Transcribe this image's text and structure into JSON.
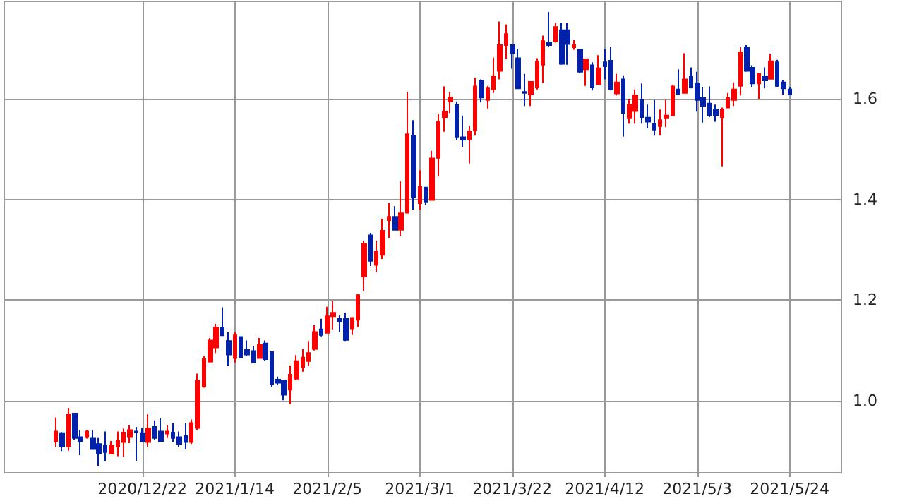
{
  "chart_data": {
    "type": "candlestick",
    "categories": [
      null,
      null,
      null,
      null,
      null,
      null,
      null,
      null,
      null,
      null,
      null,
      null,
      null,
      null,
      "2020/12/22",
      null,
      null,
      null,
      null,
      null,
      null,
      null,
      null,
      null,
      null,
      null,
      null,
      null,
      null,
      "2021/1/14",
      null,
      null,
      null,
      null,
      null,
      null,
      null,
      null,
      null,
      null,
      null,
      null,
      null,
      null,
      "2021/2/5",
      null,
      null,
      null,
      null,
      null,
      null,
      null,
      null,
      null,
      null,
      null,
      null,
      null,
      null,
      "2021/3/1",
      null,
      null,
      null,
      null,
      null,
      null,
      null,
      null,
      null,
      null,
      null,
      null,
      null,
      null,
      "2021/3/22",
      null,
      null,
      null,
      null,
      null,
      null,
      null,
      null,
      null,
      null,
      null,
      null,
      null,
      null,
      "2021/4/12",
      null,
      null,
      null,
      null,
      null,
      null,
      null,
      null,
      null,
      null,
      null,
      null,
      null,
      null,
      "2021/5/3",
      null,
      null,
      null,
      null,
      null,
      null,
      null,
      null,
      null,
      null,
      null,
      null,
      null,
      null,
      "2021/5/24"
    ],
    "ohlc": [
      [
        0.92,
        0.967,
        0.909,
        0.939
      ],
      [
        0.936,
        0.938,
        0.9,
        0.909
      ],
      [
        0.909,
        0.986,
        0.901,
        0.973
      ],
      [
        0.975,
        0.975,
        0.923,
        0.926
      ],
      [
        0.928,
        0.942,
        0.892,
        0.92
      ],
      [
        0.928,
        0.942,
        0.925,
        0.939
      ],
      [
        0.925,
        0.942,
        0.904,
        0.904
      ],
      [
        0.914,
        0.926,
        0.871,
        0.895
      ],
      [
        0.911,
        0.939,
        0.881,
        0.898
      ],
      [
        0.895,
        0.92,
        0.895,
        0.911
      ],
      [
        0.909,
        0.939,
        0.89,
        0.92
      ],
      [
        0.918,
        0.945,
        0.888,
        0.937
      ],
      [
        0.928,
        0.951,
        0.916,
        0.942
      ],
      [
        0.939,
        0.948,
        0.881,
        0.937
      ],
      [
        0.936,
        0.946,
        0.918,
        0.92
      ],
      [
        0.918,
        0.973,
        0.909,
        0.945
      ],
      [
        0.948,
        0.961,
        0.923,
        0.926
      ],
      [
        0.939,
        0.965,
        0.92,
        0.92
      ],
      [
        0.935,
        0.951,
        0.926,
        0.939
      ],
      [
        0.937,
        0.956,
        0.918,
        0.926
      ],
      [
        0.928,
        0.939,
        0.909,
        0.914
      ],
      [
        0.93,
        0.956,
        0.904,
        0.918
      ],
      [
        0.918,
        0.963,
        0.914,
        0.956
      ],
      [
        0.946,
        1.054,
        0.942,
        1.04
      ],
      [
        1.029,
        1.089,
        1.026,
        1.083
      ],
      [
        1.078,
        1.125,
        1.076,
        1.12
      ],
      [
        1.106,
        1.153,
        1.095,
        1.146
      ],
      [
        1.146,
        1.186,
        1.13,
        1.13
      ],
      [
        1.119,
        1.136,
        1.069,
        1.092
      ],
      [
        1.085,
        1.136,
        1.076,
        1.13
      ],
      [
        1.127,
        1.127,
        1.085,
        1.087
      ],
      [
        1.101,
        1.12,
        1.089,
        1.092
      ],
      [
        1.099,
        1.108,
        1.076,
        1.076
      ],
      [
        1.085,
        1.125,
        1.085,
        1.111
      ],
      [
        1.114,
        1.12,
        1.08,
        1.083
      ],
      [
        1.097,
        1.097,
        1.028,
        1.033
      ],
      [
        1.042,
        1.048,
        1.031,
        1.036
      ],
      [
        1.04,
        1.042,
        1.001,
        1.012
      ],
      [
        1.022,
        1.07,
        0.993,
        1.052
      ],
      [
        1.044,
        1.091,
        1.041,
        1.079
      ],
      [
        1.067,
        1.103,
        1.058,
        1.086
      ],
      [
        1.079,
        1.119,
        1.069,
        1.095
      ],
      [
        1.103,
        1.15,
        1.1,
        1.137
      ],
      [
        1.142,
        1.163,
        1.128,
        1.131
      ],
      [
        1.135,
        1.187,
        1.135,
        1.168
      ],
      [
        1.168,
        1.198,
        1.142,
        1.175
      ],
      [
        1.163,
        1.17,
        1.137,
        1.158
      ],
      [
        1.163,
        1.175,
        1.119,
        1.121
      ],
      [
        1.144,
        1.165,
        1.131,
        1.165
      ],
      [
        1.161,
        1.212,
        1.147,
        1.21
      ],
      [
        1.247,
        1.318,
        1.219,
        1.312
      ],
      [
        1.329,
        1.334,
        1.268,
        1.278
      ],
      [
        1.27,
        1.318,
        1.256,
        1.296
      ],
      [
        1.29,
        1.362,
        1.282,
        1.338
      ],
      [
        1.359,
        1.393,
        1.324,
        1.366
      ],
      [
        1.366,
        1.387,
        1.34,
        1.34
      ],
      [
        1.34,
        1.436,
        1.327,
        1.373
      ],
      [
        1.374,
        1.614,
        1.374,
        1.53
      ],
      [
        1.527,
        1.558,
        1.38,
        1.404
      ],
      [
        1.393,
        1.458,
        1.38,
        1.425
      ],
      [
        1.424,
        1.424,
        1.39,
        1.396
      ],
      [
        1.399,
        1.497,
        1.399,
        1.482
      ],
      [
        1.483,
        1.57,
        1.446,
        1.555
      ],
      [
        1.564,
        1.625,
        1.535,
        1.575
      ],
      [
        1.595,
        1.614,
        1.572,
        1.603
      ],
      [
        1.589,
        1.595,
        1.518,
        1.525
      ],
      [
        1.524,
        1.567,
        1.504,
        1.519
      ],
      [
        1.52,
        1.547,
        1.472,
        1.536
      ],
      [
        1.538,
        1.642,
        1.527,
        1.625
      ],
      [
        1.637,
        1.639,
        1.593,
        1.603
      ],
      [
        1.598,
        1.626,
        1.581,
        1.621
      ],
      [
        1.619,
        1.682,
        1.612,
        1.645
      ],
      [
        1.656,
        1.754,
        1.639,
        1.707
      ],
      [
        1.707,
        1.748,
        1.679,
        1.729
      ],
      [
        1.707,
        1.707,
        1.66,
        1.691
      ],
      [
        1.681,
        1.7,
        1.621,
        1.621
      ],
      [
        1.614,
        1.65,
        1.586,
        1.612
      ],
      [
        1.609,
        1.634,
        1.586,
        1.634
      ],
      [
        1.623,
        1.681,
        1.619,
        1.674
      ],
      [
        1.668,
        1.726,
        1.632,
        1.715
      ],
      [
        1.712,
        1.773,
        1.703,
        1.707
      ],
      [
        1.714,
        1.752,
        1.712,
        1.743
      ],
      [
        1.737,
        1.751,
        1.668,
        1.67
      ],
      [
        1.737,
        1.751,
        1.668,
        1.709
      ],
      [
        1.703,
        1.717,
        1.698,
        1.707
      ],
      [
        1.698,
        1.698,
        1.651,
        1.654
      ],
      [
        1.659,
        1.679,
        1.626,
        1.679
      ],
      [
        1.667,
        1.673,
        1.617,
        1.623
      ],
      [
        1.63,
        1.687,
        1.628,
        1.661
      ],
      [
        1.673,
        1.7,
        1.639,
        1.665
      ],
      [
        1.676,
        1.703,
        1.617,
        1.619
      ],
      [
        1.611,
        1.65,
        1.607,
        1.633
      ],
      [
        1.639,
        1.647,
        1.525,
        1.572
      ],
      [
        1.563,
        1.6,
        1.551,
        1.589
      ],
      [
        1.576,
        1.619,
        1.551,
        1.607
      ],
      [
        1.598,
        1.631,
        1.551,
        1.564
      ],
      [
        1.563,
        1.589,
        1.542,
        1.555
      ],
      [
        1.551,
        1.598,
        1.527,
        1.539
      ],
      [
        1.546,
        1.579,
        1.527,
        1.558
      ],
      [
        1.563,
        1.598,
        1.544,
        1.567
      ],
      [
        1.567,
        1.628,
        1.567,
        1.625
      ],
      [
        1.619,
        1.659,
        1.609,
        1.609
      ],
      [
        1.612,
        1.691,
        1.612,
        1.639
      ],
      [
        1.645,
        1.663,
        1.621,
        1.623
      ],
      [
        1.631,
        1.654,
        1.575,
        1.598
      ],
      [
        1.602,
        1.623,
        1.553,
        1.586
      ],
      [
        1.591,
        1.625,
        1.564,
        1.567
      ],
      [
        1.579,
        1.589,
        1.555,
        1.567
      ],
      [
        1.564,
        1.583,
        1.466,
        1.579
      ],
      [
        1.583,
        1.612,
        1.583,
        1.602
      ],
      [
        1.598,
        1.633,
        1.586,
        1.619
      ],
      [
        1.626,
        1.703,
        1.607,
        1.693
      ],
      [
        1.703,
        1.707,
        1.654,
        1.656
      ],
      [
        1.662,
        1.667,
        1.623,
        1.631
      ],
      [
        1.631,
        1.65,
        1.6,
        1.65
      ],
      [
        1.645,
        1.663,
        1.621,
        1.637
      ],
      [
        1.64,
        1.69,
        1.639,
        1.675
      ],
      [
        1.673,
        1.678,
        1.623,
        1.626
      ],
      [
        1.633,
        1.637,
        1.609,
        1.621
      ],
      [
        1.619,
        1.623,
        1.609,
        1.609
      ]
    ],
    "colors": [
      "#ff0000",
      "#0022aa",
      "#ff0000",
      "#0022aa",
      "#0022aa",
      "#ff0000",
      "#0022aa",
      "#0022aa",
      "#0022aa",
      "#ff0000",
      "#ff0000",
      "#ff0000",
      "#ff0000",
      "#0022aa",
      "#0022aa",
      "#ff0000",
      "#0022aa",
      "#0022aa",
      "#ff0000",
      "#0022aa",
      "#0022aa",
      "#0022aa",
      "#ff0000",
      "#ff0000",
      "#ff0000",
      "#ff0000",
      "#ff0000",
      "#0022aa",
      "#0022aa",
      "#ff0000",
      "#0022aa",
      "#0022aa",
      "#0022aa",
      "#ff0000",
      "#0022aa",
      "#0022aa",
      "#0022aa",
      "#0022aa",
      "#ff0000",
      "#ff0000",
      "#ff0000",
      "#ff0000",
      "#ff0000",
      "#0022aa",
      "#ff0000",
      "#ff0000",
      "#0022aa",
      "#0022aa",
      "#ff0000",
      "#ff0000",
      "#ff0000",
      "#0022aa",
      "#ff0000",
      "#ff0000",
      "#ff0000",
      "#0022aa",
      "#ff0000",
      "#ff0000",
      "#0022aa",
      "#ff0000",
      "#0022aa",
      "#ff0000",
      "#ff0000",
      "#ff0000",
      "#ff0000",
      "#0022aa",
      "#0022aa",
      "#ff0000",
      "#ff0000",
      "#0022aa",
      "#ff0000",
      "#ff0000",
      "#ff0000",
      "#ff0000",
      "#0022aa",
      "#0022aa",
      "#0022aa",
      "#ff0000",
      "#ff0000",
      "#ff0000",
      "#0022aa",
      "#ff0000",
      "#0022aa",
      "#0022aa",
      "#ff0000",
      "#0022aa",
      "#ff0000",
      "#0022aa",
      "#ff0000",
      "#0022aa",
      "#0022aa",
      "#ff0000",
      "#0022aa",
      "#ff0000",
      "#ff0000",
      "#0022aa",
      "#0022aa",
      "#0022aa",
      "#ff0000",
      "#ff0000",
      "#ff0000",
      "#0022aa",
      "#ff0000",
      "#0022aa",
      "#0022aa",
      "#0022aa",
      "#0022aa",
      "#0022aa",
      "#ff0000",
      "#ff0000",
      "#ff0000",
      "#ff0000",
      "#0022aa",
      "#0022aa",
      "#ff0000",
      "#0022aa",
      "#ff0000",
      "#0022aa",
      "#0022aa",
      "#0022aa"
    ],
    "ylim": [
      0.857,
      1.794
    ],
    "yticks": [
      {
        "value": 1,
        "label": "1.0"
      },
      {
        "value": 1.2,
        "label": "1.2"
      },
      {
        "value": 1.4,
        "label": "1.4"
      },
      {
        "value": 1.6,
        "label": "1.6"
      }
    ],
    "grid": true
  }
}
